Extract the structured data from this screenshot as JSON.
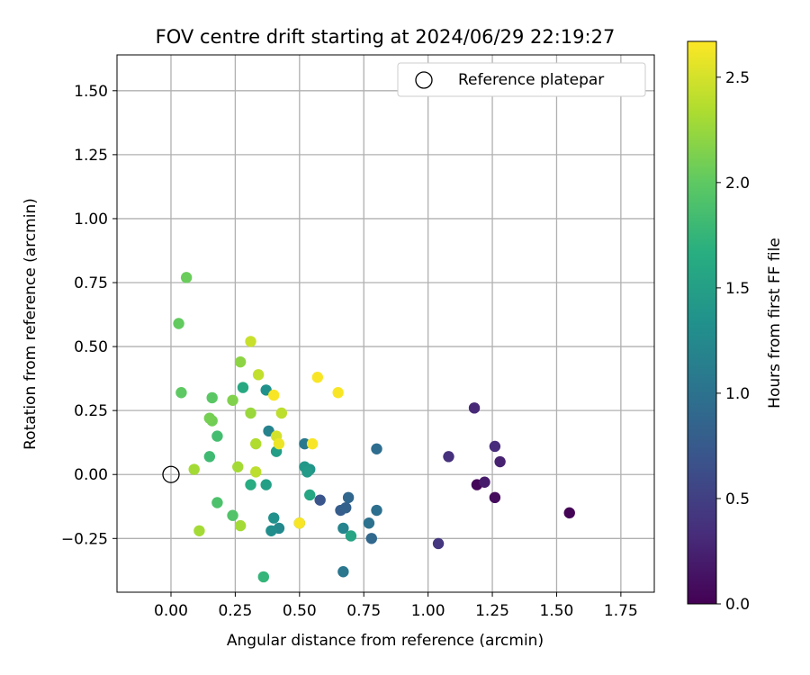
{
  "chart_data": {
    "type": "scatter",
    "title": "FOV centre drift starting at 2024/06/29 22:19:27",
    "xlabel": "Angular distance from reference (arcmin)",
    "ylabel": "Rotation from reference (arcmin)",
    "xlim": [
      -0.21,
      1.88
    ],
    "ylim": [
      -0.46,
      1.64
    ],
    "xticks": [
      0.0,
      0.25,
      0.5,
      0.75,
      1.0,
      1.25,
      1.5,
      1.75
    ],
    "xtick_labels": [
      "0.00",
      "0.25",
      "0.50",
      "0.75",
      "1.00",
      "1.25",
      "1.50",
      "1.75"
    ],
    "yticks": [
      -0.25,
      0.0,
      0.25,
      0.5,
      0.75,
      1.0,
      1.25,
      1.5
    ],
    "ytick_labels": [
      "−0.25",
      "0.00",
      "0.25",
      "0.50",
      "0.75",
      "1.00",
      "1.25",
      "1.50"
    ],
    "grid": true,
    "legend": {
      "position": "top-right",
      "entries": [
        "Reference platepar"
      ]
    },
    "reference_point": {
      "x": 0.0,
      "y": 0.0,
      "label": "Reference platepar"
    },
    "colorbar": {
      "label": "Hours from first FF file",
      "min": 0.0,
      "max": 2.67,
      "ticks": [
        0.0,
        0.5,
        1.0,
        1.5,
        2.0,
        2.5
      ],
      "tick_labels": [
        "0.0",
        "0.5",
        "1.0",
        "1.5",
        "2.0",
        "2.5"
      ],
      "colormap": "viridis"
    },
    "points": [
      {
        "x": 1.55,
        "y": -0.15,
        "c": 0.02
      },
      {
        "x": 1.19,
        "y": -0.04,
        "c": 0.04
      },
      {
        "x": 1.26,
        "y": -0.09,
        "c": 0.08
      },
      {
        "x": 1.22,
        "y": -0.03,
        "c": 0.2
      },
      {
        "x": 1.28,
        "y": 0.05,
        "c": 0.25
      },
      {
        "x": 1.18,
        "y": 0.26,
        "c": 0.3
      },
      {
        "x": 1.26,
        "y": 0.11,
        "c": 0.33
      },
      {
        "x": 1.08,
        "y": 0.07,
        "c": 0.37
      },
      {
        "x": 1.04,
        "y": -0.27,
        "c": 0.42
      },
      {
        "x": 0.58,
        "y": -0.1,
        "c": 0.7
      },
      {
        "x": 0.66,
        "y": -0.14,
        "c": 0.78
      },
      {
        "x": 0.68,
        "y": -0.13,
        "c": 0.82
      },
      {
        "x": 0.69,
        "y": -0.09,
        "c": 0.88
      },
      {
        "x": 0.78,
        "y": -0.25,
        "c": 0.9
      },
      {
        "x": 0.8,
        "y": 0.1,
        "c": 0.95
      },
      {
        "x": 0.8,
        "y": -0.14,
        "c": 0.97
      },
      {
        "x": 0.77,
        "y": -0.19,
        "c": 1.0
      },
      {
        "x": 0.67,
        "y": -0.38,
        "c": 1.05
      },
      {
        "x": 0.52,
        "y": 0.12,
        "c": 1.08
      },
      {
        "x": 0.5,
        "y": -0.19,
        "c": 1.12
      },
      {
        "x": 0.38,
        "y": 0.17,
        "c": 1.18
      },
      {
        "x": 0.67,
        "y": -0.21,
        "c": 1.2
      },
      {
        "x": 0.42,
        "y": -0.21,
        "c": 1.25
      },
      {
        "x": 0.39,
        "y": -0.22,
        "c": 1.3
      },
      {
        "x": 0.4,
        "y": -0.17,
        "c": 1.33
      },
      {
        "x": 0.37,
        "y": 0.33,
        "c": 1.35
      },
      {
        "x": 0.54,
        "y": 0.02,
        "c": 1.38
      },
      {
        "x": 0.52,
        "y": 0.03,
        "c": 1.42
      },
      {
        "x": 0.53,
        "y": 0.01,
        "c": 1.45
      },
      {
        "x": 0.41,
        "y": 0.09,
        "c": 1.48
      },
      {
        "x": 0.37,
        "y": -0.04,
        "c": 1.5
      },
      {
        "x": 0.7,
        "y": -0.24,
        "c": 1.55
      },
      {
        "x": 0.54,
        "y": -0.08,
        "c": 1.58
      },
      {
        "x": 0.28,
        "y": 0.34,
        "c": 1.6
      },
      {
        "x": 0.31,
        "y": -0.04,
        "c": 1.65
      },
      {
        "x": 0.36,
        "y": -0.4,
        "c": 1.75
      },
      {
        "x": 0.15,
        "y": 0.07,
        "c": 1.82
      },
      {
        "x": 0.18,
        "y": 0.15,
        "c": 1.85
      },
      {
        "x": 0.18,
        "y": -0.11,
        "c": 1.9
      },
      {
        "x": 0.24,
        "y": -0.16,
        "c": 1.93
      },
      {
        "x": 0.16,
        "y": 0.3,
        "c": 1.98
      },
      {
        "x": 0.04,
        "y": 0.32,
        "c": 2.0
      },
      {
        "x": 0.03,
        "y": 0.59,
        "c": 2.02
      },
      {
        "x": 0.06,
        "y": 0.77,
        "c": 2.05
      },
      {
        "x": 0.16,
        "y": 0.21,
        "c": 2.08
      },
      {
        "x": 0.15,
        "y": 0.22,
        "c": 2.1
      },
      {
        "x": 0.24,
        "y": 0.29,
        "c": 2.15
      },
      {
        "x": 0.27,
        "y": 0.44,
        "c": 2.2
      },
      {
        "x": 0.31,
        "y": 0.24,
        "c": 2.25
      },
      {
        "x": 0.26,
        "y": 0.03,
        "c": 2.3
      },
      {
        "x": 0.27,
        "y": -0.2,
        "c": 2.3
      },
      {
        "x": 0.09,
        "y": 0.02,
        "c": 2.3
      },
      {
        "x": 0.11,
        "y": -0.22,
        "c": 2.3
      },
      {
        "x": 0.33,
        "y": 0.12,
        "c": 2.35
      },
      {
        "x": 0.33,
        "y": 0.01,
        "c": 2.4
      },
      {
        "x": 0.43,
        "y": 0.24,
        "c": 2.4
      },
      {
        "x": 0.34,
        "y": 0.39,
        "c": 2.42
      },
      {
        "x": 0.31,
        "y": 0.52,
        "c": 2.45
      },
      {
        "x": 0.41,
        "y": 0.15,
        "c": 2.5
      },
      {
        "x": 0.42,
        "y": 0.12,
        "c": 2.6
      },
      {
        "x": 0.55,
        "y": 0.12,
        "c": 2.65
      },
      {
        "x": 0.4,
        "y": 0.31,
        "c": 2.65
      },
      {
        "x": 0.57,
        "y": 0.38,
        "c": 2.65
      },
      {
        "x": 0.65,
        "y": 0.32,
        "c": 2.65
      },
      {
        "x": 0.5,
        "y": -0.19,
        "c": 2.65
      }
    ]
  }
}
